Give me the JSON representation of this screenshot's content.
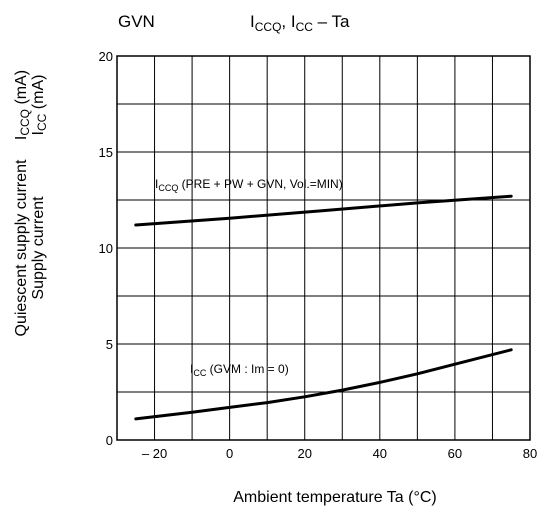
{
  "chart_data": {
    "type": "line",
    "header_left": "GVN",
    "title": {
      "main": "I",
      "main_sub": "CCQ",
      "mid": ", I",
      "mid_sub": "CC",
      "tail": " – Ta"
    },
    "xlabel": "Ambient temperature   Ta   (°C)",
    "ylabel": {
      "line1": "Quiescent supply current",
      "line1_sym": "I",
      "line1_sub": "CCQ",
      "line1_unit": " (mA)",
      "line2": "Supply current",
      "line2_sym": "I",
      "line2_sub": "CC",
      "line2_unit": "   (mA)"
    },
    "xlim": [
      -30,
      80
    ],
    "ylim": [
      0,
      20
    ],
    "x_ticks": [
      -20,
      0,
      20,
      40,
      60,
      80
    ],
    "x_tick_labels": [
      "– 20",
      "0",
      "20",
      "40",
      "60",
      "80"
    ],
    "y_ticks": [
      0,
      5,
      10,
      15,
      20
    ],
    "y_tick_labels": [
      "0",
      "5",
      "10",
      "15",
      "20"
    ],
    "grid": true,
    "series": [
      {
        "name": "I_CCQ",
        "label": {
          "sym": "I",
          "sub": "CCQ",
          "rest": " (PRE + PW + GVN, Vol.=MIN)"
        },
        "x": [
          -25,
          0,
          25,
          50,
          75
        ],
        "values": [
          11.2,
          11.55,
          11.95,
          12.35,
          12.7
        ]
      },
      {
        "name": "I_CC",
        "label": {
          "sym": "I",
          "sub": "CC",
          "rest": " (GVM : Im = 0)"
        },
        "x": [
          -25,
          -10,
          0,
          10,
          20,
          30,
          40,
          50,
          60,
          75
        ],
        "values": [
          1.1,
          1.45,
          1.7,
          1.95,
          2.25,
          2.6,
          3.0,
          3.45,
          3.95,
          4.7
        ]
      }
    ]
  }
}
